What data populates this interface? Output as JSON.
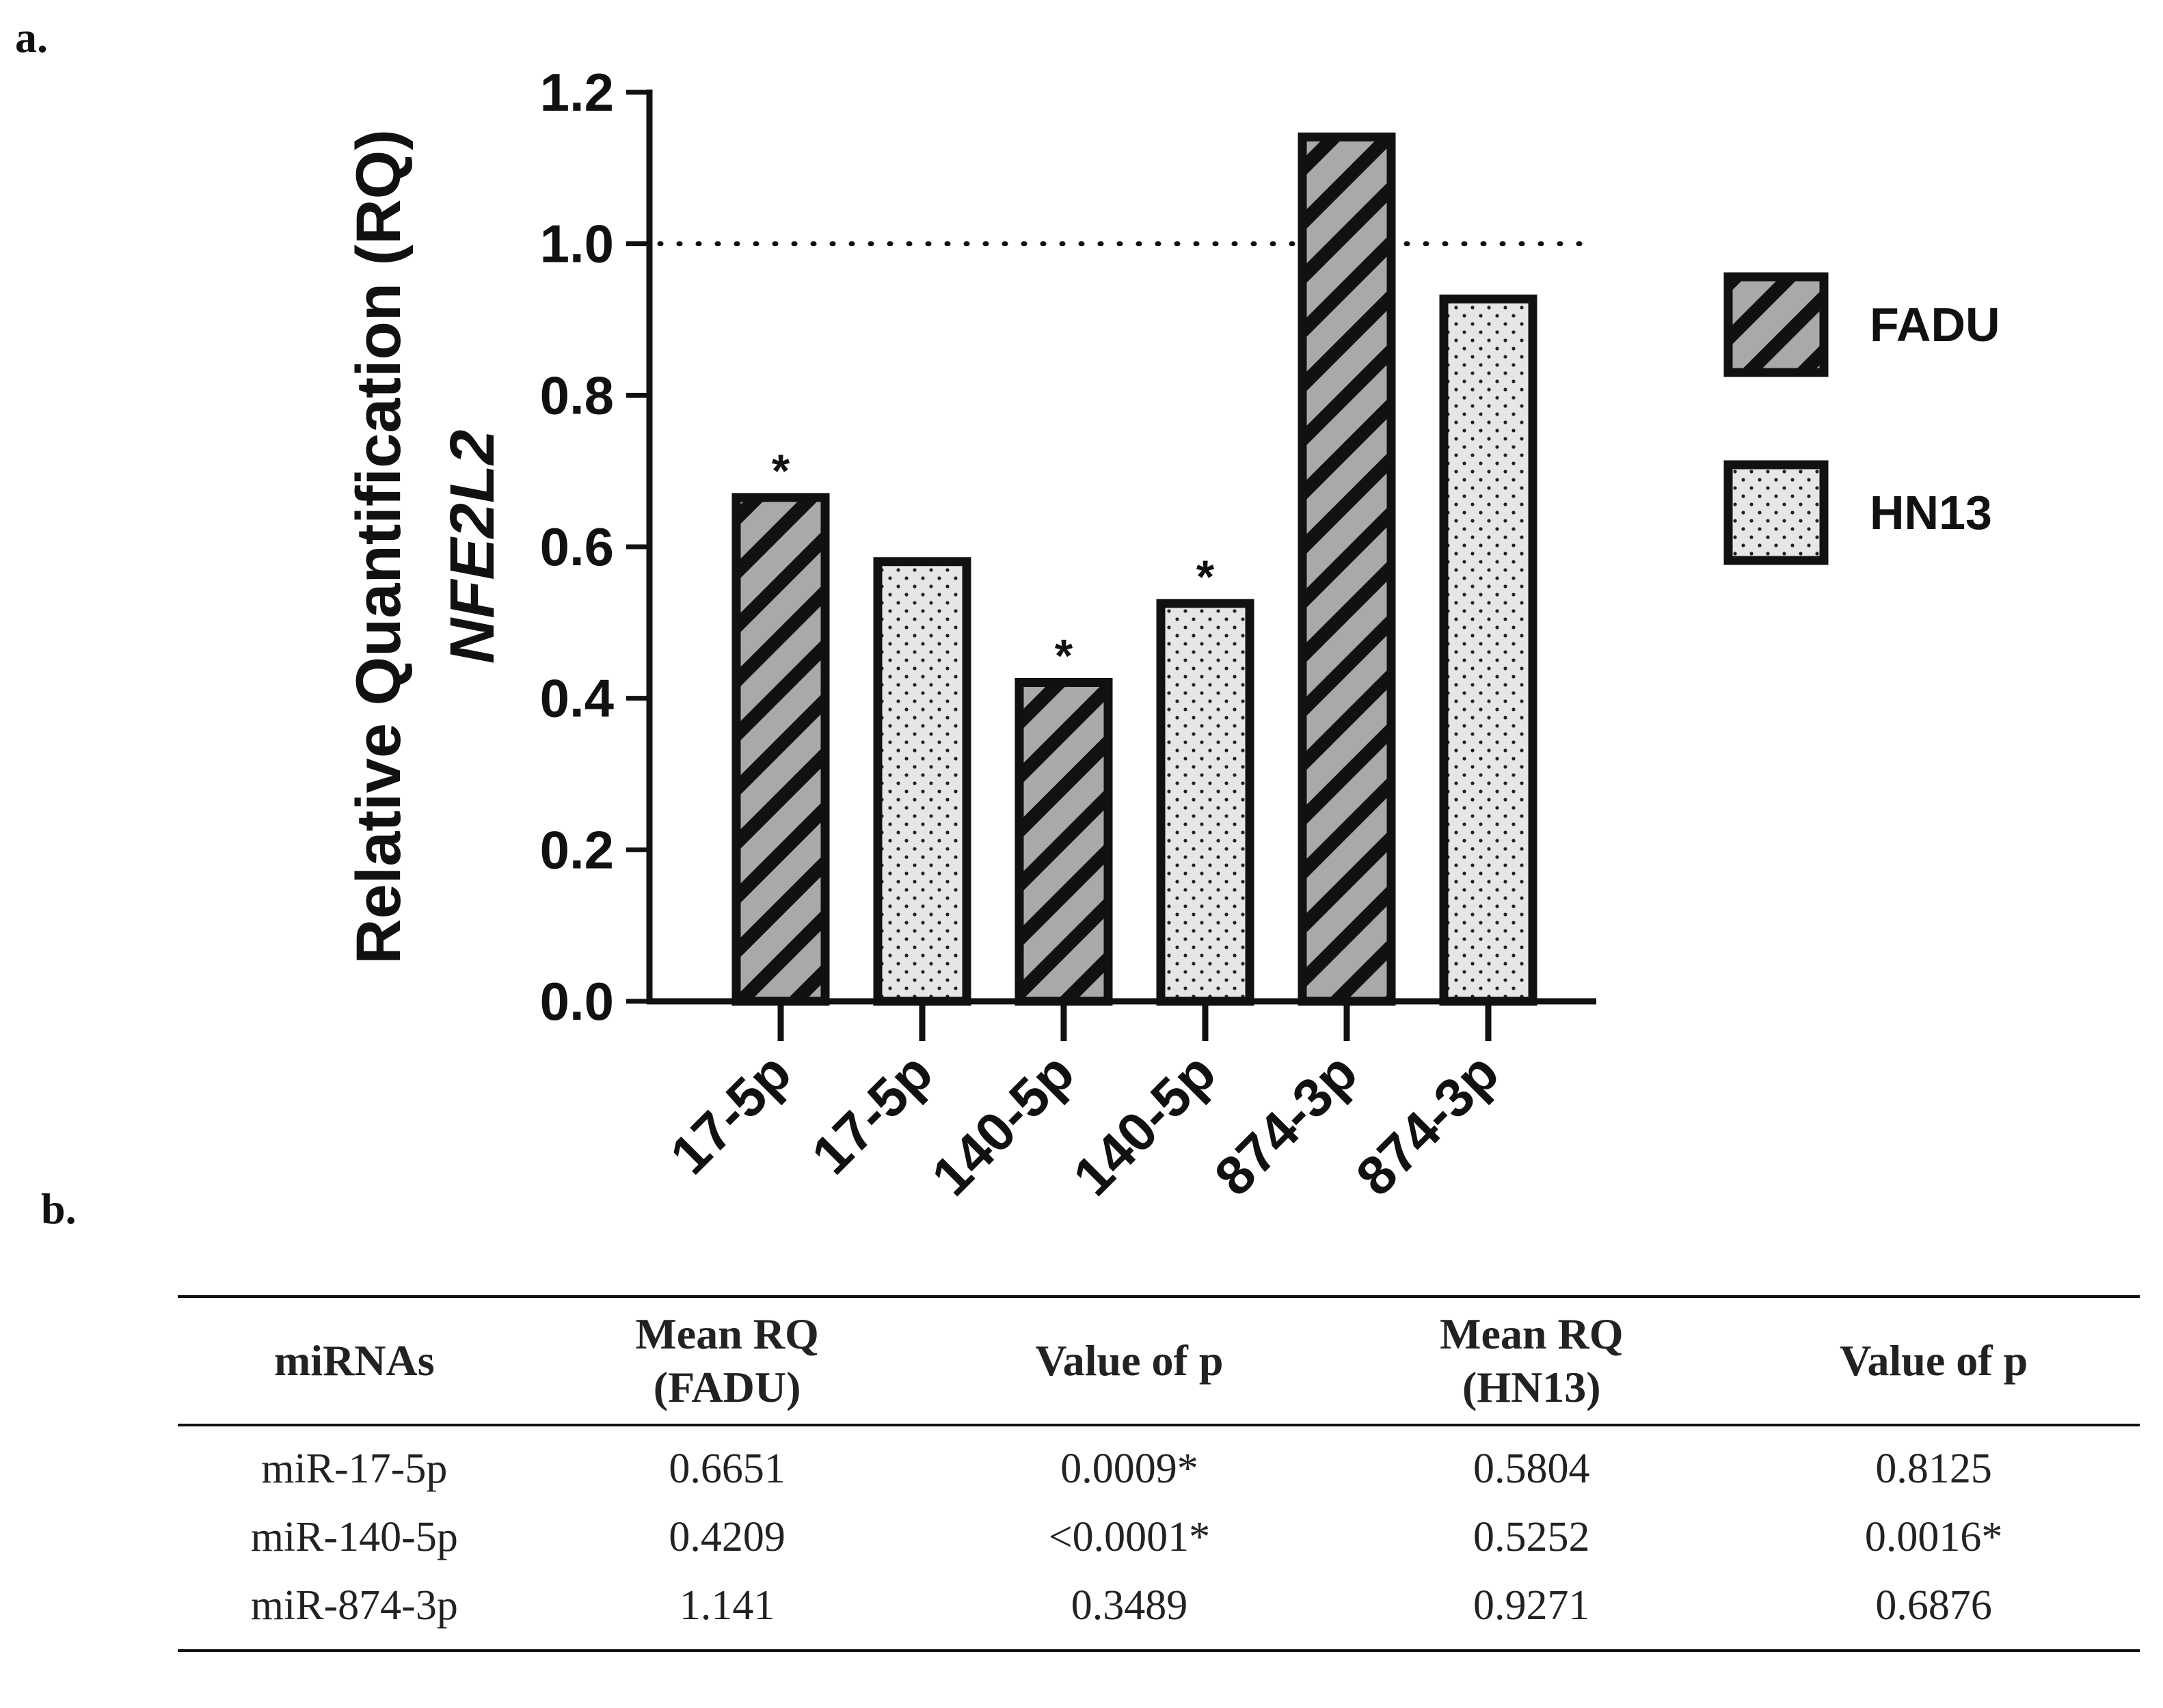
{
  "panel_a_label": "a.",
  "panel_b_label": "b.",
  "chart_data": {
    "type": "bar",
    "categories": [
      "17-5p",
      "17-5p",
      "140-5p",
      "140-5p",
      "874-3p",
      "874-3p"
    ],
    "values": [
      0.6651,
      0.5804,
      0.4209,
      0.5252,
      1.141,
      0.9271
    ],
    "groups": [
      "FADU",
      "HN13",
      "FADU",
      "HN13",
      "FADU",
      "HN13"
    ],
    "significant": [
      true,
      false,
      true,
      true,
      false,
      false
    ],
    "significance_marker": "*",
    "ylabel_line1": "Relative Quantification (RQ)",
    "ylabel_line2": "NFE2L2",
    "ylim": [
      0,
      1.2
    ],
    "yticks": [
      "0.0",
      "0.2",
      "0.4",
      "0.6",
      "0.8",
      "1.0",
      "1.2"
    ],
    "reference_line": 1.0,
    "legend": [
      {
        "name": "FADU",
        "pattern": "diagonal-stripes"
      },
      {
        "name": "HN13",
        "pattern": "dots"
      }
    ],
    "legend_position": "right",
    "colors": {
      "fadu_fill": "#a9a9a9",
      "hn13_fill": "#e6e6e6",
      "stroke": "#111111"
    }
  },
  "table": {
    "headers": [
      [
        "miRNAs"
      ],
      [
        "Mean RQ",
        "(FADU)"
      ],
      [
        "Value of p"
      ],
      [
        "Mean RQ",
        "(HN13)"
      ],
      [
        "Value of p"
      ]
    ],
    "rows": [
      [
        "miR-17-5p",
        "0.6651",
        "0.0009*",
        "0.5804",
        "0.8125"
      ],
      [
        "miR-140-5p",
        "0.4209",
        "<0.0001*",
        "0.5252",
        "0.0016*"
      ],
      [
        "miR-874-3p",
        "1.141",
        "0.3489",
        "0.9271",
        "0.6876"
      ]
    ]
  }
}
